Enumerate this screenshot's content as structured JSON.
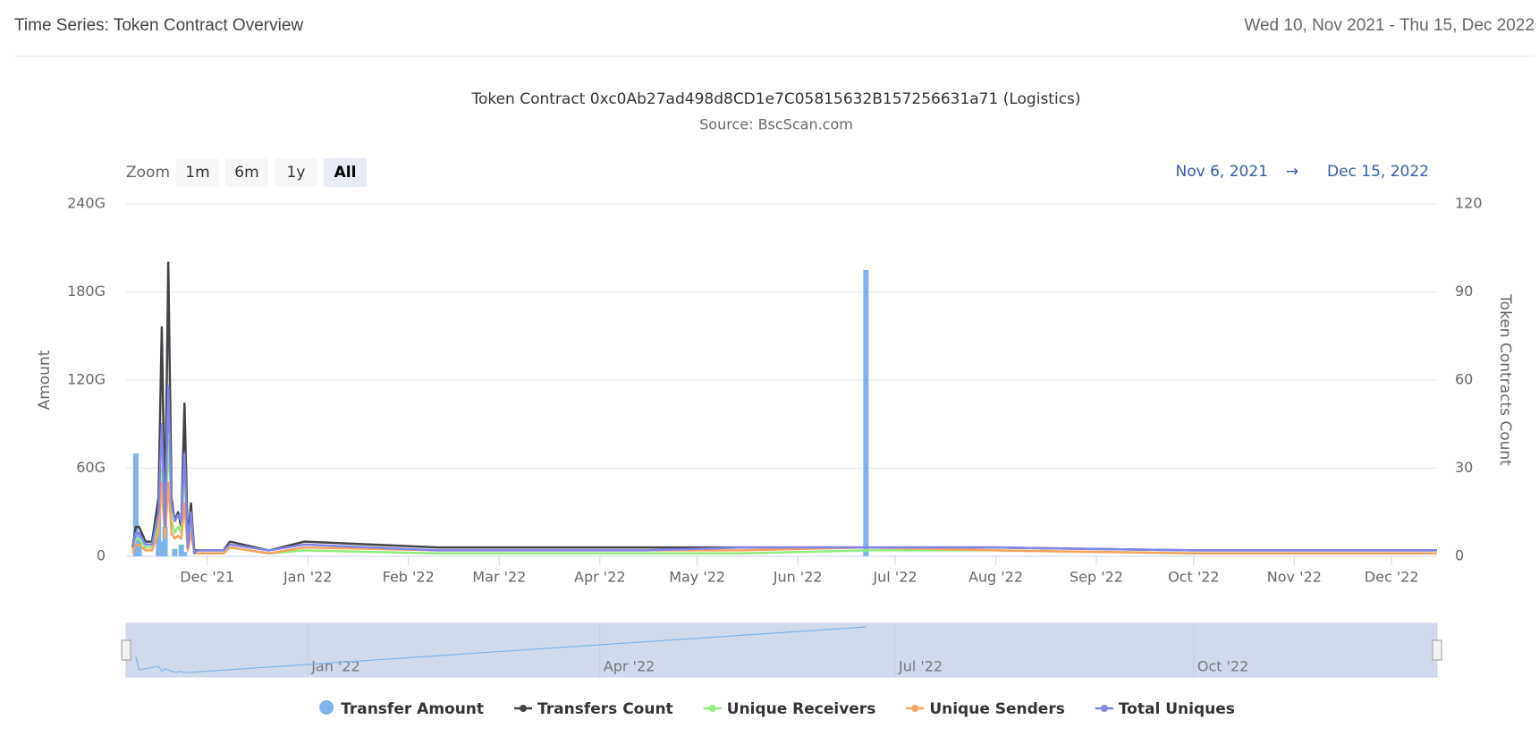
{
  "header": {
    "title": "Time Series: Token Contract Overview",
    "date_range": "Wed 10, Nov 2021 - Thu 15, Dec 2022"
  },
  "chart_data": {
    "type": "line",
    "title": "Token Contract 0xc0Ab27ad498d8CD1e7C05815632B157256631a71 (Logistics)",
    "subtitle": "Source: BscScan.com",
    "range_selector": {
      "label": "Zoom",
      "buttons": [
        "1m",
        "6m",
        "1y",
        "All"
      ],
      "selected": 3,
      "from": "Nov 6, 2021",
      "arrow": "→",
      "to": "Dec 15, 2022"
    },
    "y_label": "Amount",
    "y2_label": "Token Contracts Count",
    "xlim": [
      "2021-11-06",
      "2022-12-15"
    ],
    "xticks": [
      {
        "value": "2021-12-01",
        "label": "Dec '21"
      },
      {
        "value": "2022-01-01",
        "label": "Jan '22"
      },
      {
        "value": "2022-02-01",
        "label": "Feb '22"
      },
      {
        "value": "2022-03-01",
        "label": "Mar '22"
      },
      {
        "value": "2022-04-01",
        "label": "Apr '22"
      },
      {
        "value": "2022-05-01",
        "label": "May '22"
      },
      {
        "value": "2022-06-01",
        "label": "Jun '22"
      },
      {
        "value": "2022-07-01",
        "label": "Jul '22"
      },
      {
        "value": "2022-08-01",
        "label": "Aug '22"
      },
      {
        "value": "2022-09-01",
        "label": "Sep '22"
      },
      {
        "value": "2022-10-01",
        "label": "Oct '22"
      },
      {
        "value": "2022-11-01",
        "label": "Nov '22"
      },
      {
        "value": "2022-12-01",
        "label": "Dec '22"
      }
    ],
    "ylim": [
      0,
      240
    ],
    "yticks": [
      {
        "value": 0,
        "label": "0"
      },
      {
        "value": 60,
        "label": "60G"
      },
      {
        "value": 120,
        "label": "120G"
      },
      {
        "value": 180,
        "label": "180G"
      },
      {
        "value": 240,
        "label": "240G"
      }
    ],
    "y2lim": [
      0,
      120
    ],
    "y2ticks": [
      0,
      30,
      60,
      90,
      120
    ],
    "grid": true,
    "x": [
      "2021-11-08",
      "2021-11-09",
      "2021-11-10",
      "2021-11-12",
      "2021-11-14",
      "2021-11-16",
      "2021-11-17",
      "2021-11-18",
      "2021-11-19",
      "2021-11-20",
      "2021-11-21",
      "2021-11-22",
      "2021-11-23",
      "2021-11-24",
      "2021-11-25",
      "2021-11-26",
      "2021-11-27",
      "2021-11-28",
      "2021-12-06",
      "2021-12-08",
      "2021-12-20",
      "2021-12-31",
      "2022-02-10",
      "2022-03-20",
      "2022-04-15",
      "2022-05-15",
      "2022-06-22",
      "2022-08-01",
      "2022-10-01",
      "2022-12-15"
    ],
    "series": [
      {
        "name": "Transfer Amount",
        "color": "#7cb5ec",
        "type": "column",
        "axis": "y",
        "x": [
          "2021-11-09",
          "2021-11-10",
          "2021-11-16",
          "2021-11-17",
          "2021-11-18",
          "2021-11-21",
          "2021-11-23",
          "2021-11-24",
          "2022-06-22"
        ],
        "values": [
          70,
          15,
          30,
          10,
          20,
          5,
          8,
          3,
          195
        ]
      },
      {
        "name": "Transfers Count",
        "color": "#434348",
        "type": "line",
        "axis": "y2",
        "values": [
          3,
          10,
          10,
          5,
          5,
          20,
          78,
          12,
          100,
          20,
          12,
          15,
          10,
          52,
          5,
          18,
          2,
          2,
          2,
          5,
          2,
          5,
          3,
          3,
          3,
          3,
          3,
          3,
          2,
          2
        ]
      },
      {
        "name": "Unique Receivers",
        "color": "#90ed7d",
        "type": "line",
        "axis": "y2",
        "values": [
          2,
          6,
          6,
          3,
          3,
          10,
          30,
          8,
          40,
          12,
          8,
          10,
          8,
          30,
          3,
          12,
          1,
          1,
          1,
          3,
          1,
          2,
          1,
          1,
          1,
          1,
          2,
          2,
          1,
          1
        ]
      },
      {
        "name": "Unique Senders",
        "color": "#f7a35c",
        "type": "line",
        "axis": "y2",
        "values": [
          1,
          4,
          4,
          2,
          2,
          8,
          25,
          6,
          25,
          8,
          6,
          7,
          6,
          18,
          2,
          8,
          1,
          1,
          1,
          3,
          1,
          3,
          2,
          2,
          2,
          2,
          3,
          2,
          1,
          1
        ]
      },
      {
        "name": "Total Uniques",
        "color": "#8085e9",
        "type": "line",
        "axis": "y2",
        "values": [
          3,
          8,
          8,
          4,
          4,
          15,
          45,
          10,
          58,
          18,
          12,
          14,
          12,
          35,
          3,
          15,
          1,
          2,
          2,
          4,
          2,
          4,
          2,
          2,
          2,
          3,
          3,
          3,
          2,
          2
        ]
      }
    ],
    "navigator_xticks": [
      {
        "value": "2022-01-01",
        "label": "Jan '22"
      },
      {
        "value": "2022-04-01",
        "label": "Apr '22"
      },
      {
        "value": "2022-07-01",
        "label": "Jul '22"
      },
      {
        "value": "2022-10-01",
        "label": "Oct '22"
      }
    ]
  }
}
